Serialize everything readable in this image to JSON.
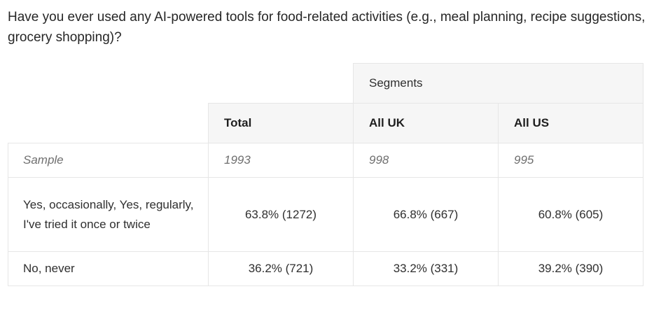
{
  "question": "Have you ever used any AI-powered tools for food-related activities (e.g., meal planning, recipe suggestions, grocery shopping)?",
  "table": {
    "group_header": "Segments",
    "columns": [
      "Total",
      "All UK",
      "All US"
    ],
    "sample_row": {
      "label": "Sample",
      "values": [
        "1993",
        "998",
        "995"
      ]
    },
    "rows": [
      {
        "label": "Yes, occasionally, Yes, regularly, I've tried it once or twice",
        "values": [
          "63.8% (1272)",
          "66.8% (667)",
          "60.8% (605)"
        ]
      },
      {
        "label": "No, never",
        "values": [
          "36.2% (721)",
          "33.2% (331)",
          "39.2% (390)"
        ]
      }
    ]
  }
}
